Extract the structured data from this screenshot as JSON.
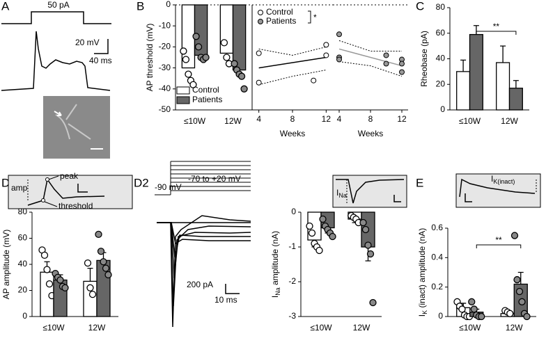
{
  "panel_labels": [
    "A",
    "B",
    "C",
    "D1",
    "D2",
    "E"
  ],
  "panel_a": {
    "stimulus": "50 pA",
    "scale_v": "20 mV",
    "scale_t": "40 ms"
  },
  "panel_d1": {
    "amp": "amp",
    "peak": "peak",
    "threshold": "threshold"
  },
  "panel_d2": {
    "steps": "-70 to +20 mV",
    "hold": "-90 mV",
    "scale_i": "200 pA",
    "scale_t": "10 ms",
    "ina": [
      "I",
      "Na"
    ]
  },
  "panel_e": {
    "ik": [
      "I",
      "K(inact)"
    ]
  },
  "chart_data": [
    {
      "type": "bar",
      "ylabel": "AP threshold (mV)",
      "categories": [
        "≤10W",
        "12W"
      ],
      "series": [
        {
          "name": "Control",
          "color": "#ffffff",
          "values": [
            -30,
            -23
          ],
          "points": [
            [
              -22,
              -26,
              -33,
              -36,
              -38
            ],
            [
              -18,
              -25,
              -28
            ]
          ]
        },
        {
          "name": "Patients",
          "color": "#666666",
          "values": [
            -24,
            -31
          ],
          "points": [
            [
              -15,
              -20,
              -25,
              -26,
              -25
            ],
            [
              -28,
              -31,
              -33,
              -34,
              -40
            ]
          ]
        }
      ],
      "ylim": [
        -50,
        0
      ],
      "yticks": [
        0,
        -10,
        -20,
        -30,
        -40,
        -50
      ],
      "legend": "lower left"
    },
    {
      "type": "scatter",
      "xlabel": "Weeks",
      "xlim": [
        3.2,
        12.8
      ],
      "xticks": [
        4,
        8,
        12
      ],
      "ylim": [
        -50,
        0
      ],
      "series": [
        {
          "name": "Control",
          "color": "#ffffff",
          "x": [
            4,
            4,
            10.5,
            12,
            12
          ],
          "values": [
            -23,
            -37,
            -36,
            -19,
            -24
          ]
        }
      ],
      "fit": {
        "color": "#000000",
        "x": [
          4,
          12
        ],
        "values": [
          -30,
          -25
        ]
      },
      "ci_upper": {
        "x": [
          4,
          8,
          12
        ],
        "values": [
          -21,
          -24,
          -20
        ]
      },
      "ci_lower": {
        "x": [
          4,
          8,
          12
        ],
        "values": [
          -38,
          -34,
          -31
        ]
      },
      "legend": [
        {
          "name": "Control",
          "color": "#ffffff"
        },
        {
          "name": "Patients",
          "color": "#999999"
        }
      ],
      "significance": "*"
    },
    {
      "type": "scatter",
      "xlabel": "Weeks",
      "xlim": [
        3.2,
        12.8
      ],
      "xticks": [
        4,
        8,
        12
      ],
      "ylim": [
        -50,
        0
      ],
      "series": [
        {
          "name": "Patients",
          "color": "#999999",
          "x": [
            4,
            4,
            4,
            10,
            10,
            12,
            12,
            12
          ],
          "values": [
            -14,
            -25,
            -26,
            -24,
            -28,
            -26,
            -28,
            -32
          ]
        }
      ],
      "fit": {
        "color": "#999999",
        "x": [
          4,
          12
        ],
        "values": [
          -21,
          -29
        ]
      },
      "ci_upper": {
        "x": [
          4,
          8,
          12
        ],
        "values": [
          -17,
          -22,
          -22
        ]
      },
      "ci_lower": {
        "x": [
          4,
          8,
          12
        ],
        "values": [
          -27,
          -29,
          -34
        ]
      }
    },
    {
      "type": "bar",
      "ylabel": "Rheobase (pA)",
      "categories": [
        "≤10W",
        "12W"
      ],
      "series": [
        {
          "color": "#ffffff",
          "values": [
            30,
            37
          ],
          "errors": [
            9,
            13
          ]
        },
        {
          "color": "#666666",
          "values": [
            59,
            17
          ],
          "errors": [
            7,
            6
          ]
        }
      ],
      "ylim": [
        0,
        80
      ],
      "yticks": [
        0,
        20,
        40,
        60,
        80
      ],
      "significance": "**"
    },
    {
      "type": "bar",
      "ylabel": "AP amplitude (mV)",
      "categories": [
        "≤10W",
        "12W"
      ],
      "series": [
        {
          "color": "#ffffff",
          "values": [
            34,
            27
          ],
          "errors": [
            8,
            10
          ],
          "points": [
            [
              51,
              47,
              36,
              25,
              16
            ],
            [
              41,
              22,
              17
            ]
          ]
        },
        {
          "color": "#666666",
          "values": [
            28,
            43
          ],
          "errors": [
            4,
            6
          ],
          "points": [
            [
              33,
              30,
              28,
              23,
              22
            ],
            [
              63,
              50,
              42,
              37,
              32
            ]
          ]
        }
      ],
      "ylim": [
        0,
        80
      ],
      "yticks": [
        0,
        20,
        40,
        60,
        80
      ]
    },
    {
      "type": "bar",
      "ylabel": [
        "I",
        "Na",
        " amplitude (nA)"
      ],
      "categories": [
        "≤10W",
        "12W"
      ],
      "series": [
        {
          "color": "#ffffff",
          "values": [
            -0.8,
            -0.2
          ],
          "errors": [
            0.2,
            0.1
          ],
          "points": [
            [
              -0.4,
              -0.6,
              -0.9,
              -1.0,
              -1.1
            ],
            [
              -0.1,
              -0.15,
              -0.2,
              -0.3
            ]
          ]
        },
        {
          "color": "#666666",
          "values": [
            -0.45,
            -1.0
          ],
          "errors": [
            0.15,
            0.4
          ],
          "points": [
            [
              -0.2,
              -0.4,
              -0.5,
              -0.6,
              -0.7
            ],
            [
              -0.3,
              -0.5,
              -0.95,
              -1.2,
              -2.6
            ]
          ]
        }
      ],
      "ylim": [
        -3,
        0
      ],
      "yticks": [
        0,
        -1,
        -2,
        -3
      ]
    },
    {
      "type": "bar",
      "ylabel": [
        "I",
        "K",
        " (inact) amplitude (nA)"
      ],
      "categories": [
        "≤10W",
        "12W"
      ],
      "series": [
        {
          "color": "#ffffff",
          "values": [
            0.06,
            0.02
          ],
          "errors": [
            0.03,
            0.01
          ],
          "points": [
            [
              0.1,
              0.07,
              0.05,
              0.01,
              0.0,
              0.0
            ],
            [
              0.04,
              0.03,
              0.02
            ]
          ]
        },
        {
          "color": "#666666",
          "values": [
            0.03,
            0.22
          ],
          "errors": [
            0.02,
            0.08
          ],
          "points": [
            [
              0.1,
              0.05,
              0.01,
              0.0,
              0.0
            ],
            [
              0.55,
              0.25,
              0.17,
              0.1,
              0.02,
              0.0
            ]
          ]
        }
      ],
      "ylim": [
        0,
        0.6
      ],
      "yticks": [
        0,
        0.2,
        0.4,
        0.6
      ],
      "significance": "**"
    }
  ]
}
